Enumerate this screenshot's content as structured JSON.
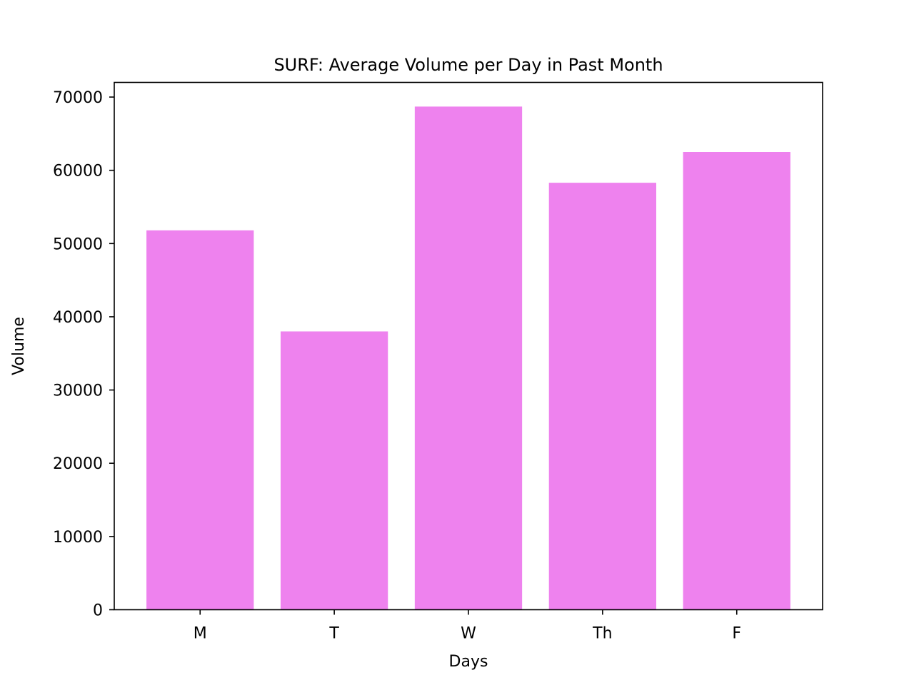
{
  "chart_data": {
    "type": "bar",
    "title": "SURF: Average Volume per Day in Past Month",
    "xlabel": "Days",
    "ylabel": "Volume",
    "categories": [
      "M",
      "T",
      "W",
      "Th",
      "F"
    ],
    "values": [
      51800,
      38000,
      68700,
      58300,
      62500
    ],
    "ylim": [
      0,
      72000
    ],
    "yticks": [
      0,
      10000,
      20000,
      30000,
      40000,
      50000,
      60000,
      70000
    ],
    "ytick_labels": [
      "0",
      "10000",
      "20000",
      "30000",
      "40000",
      "50000",
      "60000",
      "70000"
    ],
    "bar_color": "#ee82ee",
    "grid": false,
    "legend": "none"
  }
}
